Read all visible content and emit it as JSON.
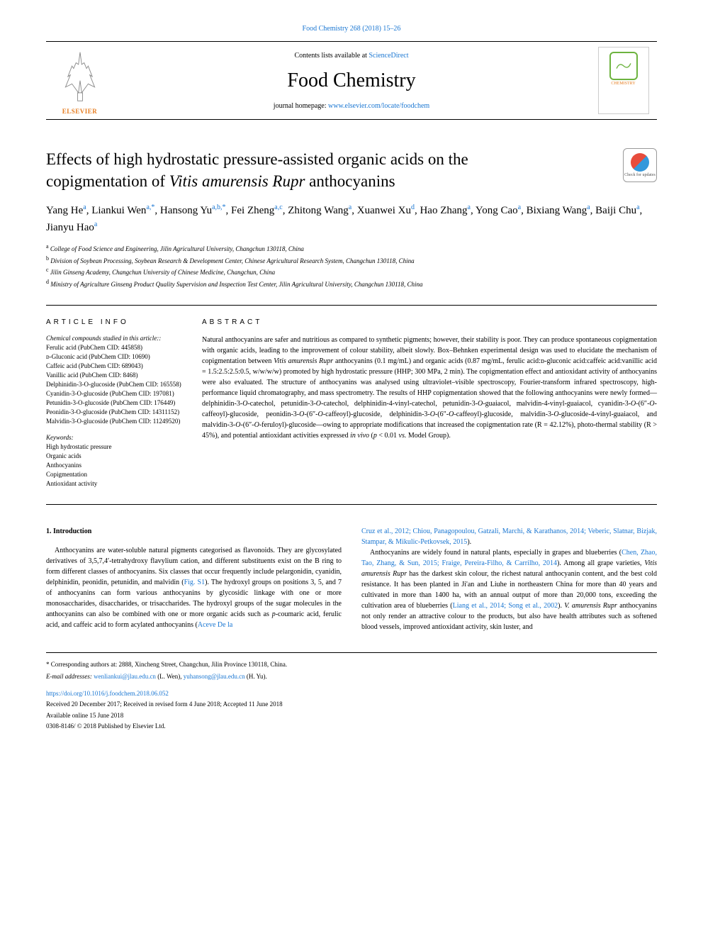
{
  "journal_ref": "Food Chemistry 268 (2018) 15–26",
  "header": {
    "contents_prefix": "Contents lists available at ",
    "contents_link": "ScienceDirect",
    "journal_name": "Food Chemistry",
    "homepage_prefix": "journal homepage: ",
    "homepage_link": "www.elsevier.com/locate/foodchem",
    "elsevier": "ELSEVIER",
    "cover_text": "CHEMISTRY"
  },
  "title": {
    "line1": "Effects of high hydrostatic pressure-assisted organic acids on the",
    "line2_a": "copigmentation of ",
    "line2_italic": "Vitis amurensis Rupr",
    "line2_b": " anthocyanins"
  },
  "crossmark": "Check for updates",
  "authors_html": "Yang He<sup>a</sup>, Liankui Wen<sup>a,*</sup>, Hansong Yu<sup>a,b,*</sup>, Fei Zheng<sup>a,c</sup>, Zhitong Wang<sup>a</sup>, Xuanwei Xu<sup>d</sup>, Hao Zhang<sup>a</sup>, Yong Cao<sup>a</sup>, Bixiang Wang<sup>a</sup>, Baiji Chu<sup>a</sup>, Jianyu Hao<sup>a</sup>",
  "affiliations": [
    {
      "sup": "a",
      "text": "College of Food Science and Engineering, Jilin Agricultural University, Changchun 130118, China"
    },
    {
      "sup": "b",
      "text": "Division of Soybean Processing, Soybean Research & Development Center, Chinese Agricultural Research System, Changchun 130118, China"
    },
    {
      "sup": "c",
      "text": "Jilin Ginseng Academy, Changchun University of Chinese Medicine, Changchun, China"
    },
    {
      "sup": "d",
      "text": "Ministry of Agriculture Ginseng Product Quality Supervision and Inspection Test Center, Jilin Agricultural University, Changchun 130118, China"
    }
  ],
  "article_info": {
    "heading": "ARTICLE INFO",
    "compounds_label": "Chemical compounds studied in this article::",
    "compounds": [
      "Ferulic acid (PubChem CID: 445858)",
      "ᴅ-Gluconic acid (PubChem CID: 10690)",
      "Caffeic acid (PubChem CID: 689043)",
      "Vanillic acid (PubChem CID: 8468)",
      "Delphinidin-3-O-glucoside (PubChem CID: 165558)",
      "Cyanidin-3-O-glucoside (PubChem CID: 197081)",
      "Petunidin-3-O-glucoside (PubChem CID: 176449)",
      "Peonidin-3-O-glucoside (PubChem CID: 14311152)",
      "Malvidin-3-O-glucoside (PubChem CID: 11249520)"
    ],
    "keywords_label": "Keywords:",
    "keywords": [
      "High hydrostatic pressure",
      "Organic acids",
      "Anthocyanins",
      "Copigmentation",
      "Antioxidant activity"
    ]
  },
  "abstract": {
    "heading": "ABSTRACT",
    "text_parts": [
      {
        "t": "Natural anthocyanins are safer and nutritious as compared to synthetic pigments; however, their stability is poor. They can produce spontaneous copigmentation with organic acids, leading to the improvement of colour stability, albeit slowly. Box–Behnken experimental design was used to elucidate the mechanism of copigmentation between "
      },
      {
        "t": "Vitis amurensis Rupr",
        "i": true
      },
      {
        "t": " anthocyanins (0.1 mg/mL) and organic acids (0.87 mg/mL, ferulic acid:ᴅ-gluconic acid:caffeic acid:vanillic acid = 1.5:2.5:2.5:0.5, w/w/w/w) promoted by high hydrostatic pressure (HHP; 300 MPa, 2 min). The copigmentation effect and antioxidant activity of anthocyanins were also evaluated. The structure of anthocyanins was analysed using ultraviolet–visible spectroscopy, Fourier-transform infrared spectroscopy, high-performance liquid chromatography, and mass spectrometry. The results of HHP copigmentation showed that the following anthocyanins were newly formed—delphinidin-3-"
      },
      {
        "t": "O",
        "i": true
      },
      {
        "t": "-catechol, petunidin-3-"
      },
      {
        "t": "O",
        "i": true
      },
      {
        "t": "-catechol, delphinidin-4-vinyl-catechol, petunidin-3-"
      },
      {
        "t": "O",
        "i": true
      },
      {
        "t": "-guaiacol, malvidin-4-vinyl-guaiacol, cyanidin-3-"
      },
      {
        "t": "O",
        "i": true
      },
      {
        "t": "-(6″-"
      },
      {
        "t": "O",
        "i": true
      },
      {
        "t": "-caffeoyl)-glucoside, peonidin-3-"
      },
      {
        "t": "O",
        "i": true
      },
      {
        "t": "-(6″-"
      },
      {
        "t": "O",
        "i": true
      },
      {
        "t": "-caffeoyl)-glucoside, delphinidin-3-"
      },
      {
        "t": "O",
        "i": true
      },
      {
        "t": "-(6″-"
      },
      {
        "t": "O",
        "i": true
      },
      {
        "t": "-caffeoyl)-glucoside, malvidin-3-"
      },
      {
        "t": "O",
        "i": true
      },
      {
        "t": "-glucoside-4-vinyl-guaiacol, and malvidin-3-"
      },
      {
        "t": "O",
        "i": true
      },
      {
        "t": "-(6″-"
      },
      {
        "t": "O",
        "i": true
      },
      {
        "t": "-feruloyl)-glucoside—owing to appropriate modifications that increased the copigmentation rate (R = 42.12%), photo-thermal stability (R > 45%), and potential antioxidant activities expressed "
      },
      {
        "t": "in vivo",
        "i": true
      },
      {
        "t": " ("
      },
      {
        "t": "p",
        "i": true
      },
      {
        "t": " < 0.01 "
      },
      {
        "t": "vs.",
        "i": true
      },
      {
        "t": " Model Group)."
      }
    ]
  },
  "intro": {
    "heading": "1. Introduction",
    "col1_parts": [
      {
        "t": "Anthocyanins are water-soluble natural pigments categorised as flavonoids. They are glycosylated derivatives of 3,5,7,4′-tetrahydroxy flavylium cation, and different substituents exist on the B ring to form different classes of anthocyanins. Six classes that occur frequently include pelargonidin, cyanidin, delphinidin, peonidin, petunidin, and malvidin ("
      },
      {
        "t": "Fig. S1",
        "link": true
      },
      {
        "t": "). The hydroxyl groups on positions 3, 5, and 7 of anthocyanins can form various anthocyanins by glycosidic linkage with one or more monosaccharides, disaccharides, or trisaccharides. The hydroxyl groups of the sugar molecules in the anthocyanins can also be combined with one or more organic acids such as "
      },
      {
        "t": "p",
        "i": true
      },
      {
        "t": "-coumaric acid, ferulic acid, and caffeic acid to form acylated anthocyanins ("
      },
      {
        "t": "Aceve De la",
        "link": true
      }
    ],
    "col2_top_parts": [
      {
        "t": "Cruz et al., 2012; Chiou, Panagopoulou, Gatzali, Marchi, & Karathanos, 2014; Veberic, Slatnar, Bizjak, Stampar, & Mikulic-Petkovsek, 2015",
        "link": true
      },
      {
        "t": ")."
      }
    ],
    "col2_p2_parts": [
      {
        "t": "Anthocyanins are widely found in natural plants, especially in grapes and blueberries ("
      },
      {
        "t": "Chen, Zhao, Tao, Zhang, & Sun, 2015; Fraige, Pereira-Filho, & Carrilho, 2014",
        "link": true
      },
      {
        "t": "). Among all grape varieties, "
      },
      {
        "t": "Vitis amurensis Rupr",
        "i": true
      },
      {
        "t": " has the darkest skin colour, the richest natural anthocyanin content, and the best cold resistance. It has been planted in Ji'an and Liuhe in northeastern China for more than 40 years and cultivated in more than 1400 ha, with an annual output of more than 20,000 tons, exceeding the cultivation area of blueberries ("
      },
      {
        "t": "Liang et al., 2014; Song et al., 2002",
        "link": true
      },
      {
        "t": "). "
      },
      {
        "t": "V. amurensis Rupr",
        "i": true
      },
      {
        "t": " anthocyanins not only render an attractive colour to the products, but also have health attributes such as softened blood vessels, improved antioxidant activity, skin luster, and"
      }
    ]
  },
  "footer": {
    "corresponding": "* Corresponding authors at: 2888, Xincheng Street, Changchun, Jilin Province 130118, China.",
    "email_label": "E-mail addresses:",
    "email1": "wenliankui@jlau.edu.cn",
    "email1_suffix": " (L. Wen), ",
    "email2": "yuhansong@jlau.edu.cn",
    "email2_suffix": " (H. Yu).",
    "doi": "https://doi.org/10.1016/j.foodchem.2018.06.052",
    "received": "Received 20 December 2017; Received in revised form 4 June 2018; Accepted 11 June 2018",
    "available": "Available online 15 June 2018",
    "copyright": "0308-8146/ © 2018 Published by Elsevier Ltd."
  },
  "colors": {
    "link": "#1976d2",
    "elsevier_orange": "#e67e22",
    "food_green": "#6db33f"
  }
}
